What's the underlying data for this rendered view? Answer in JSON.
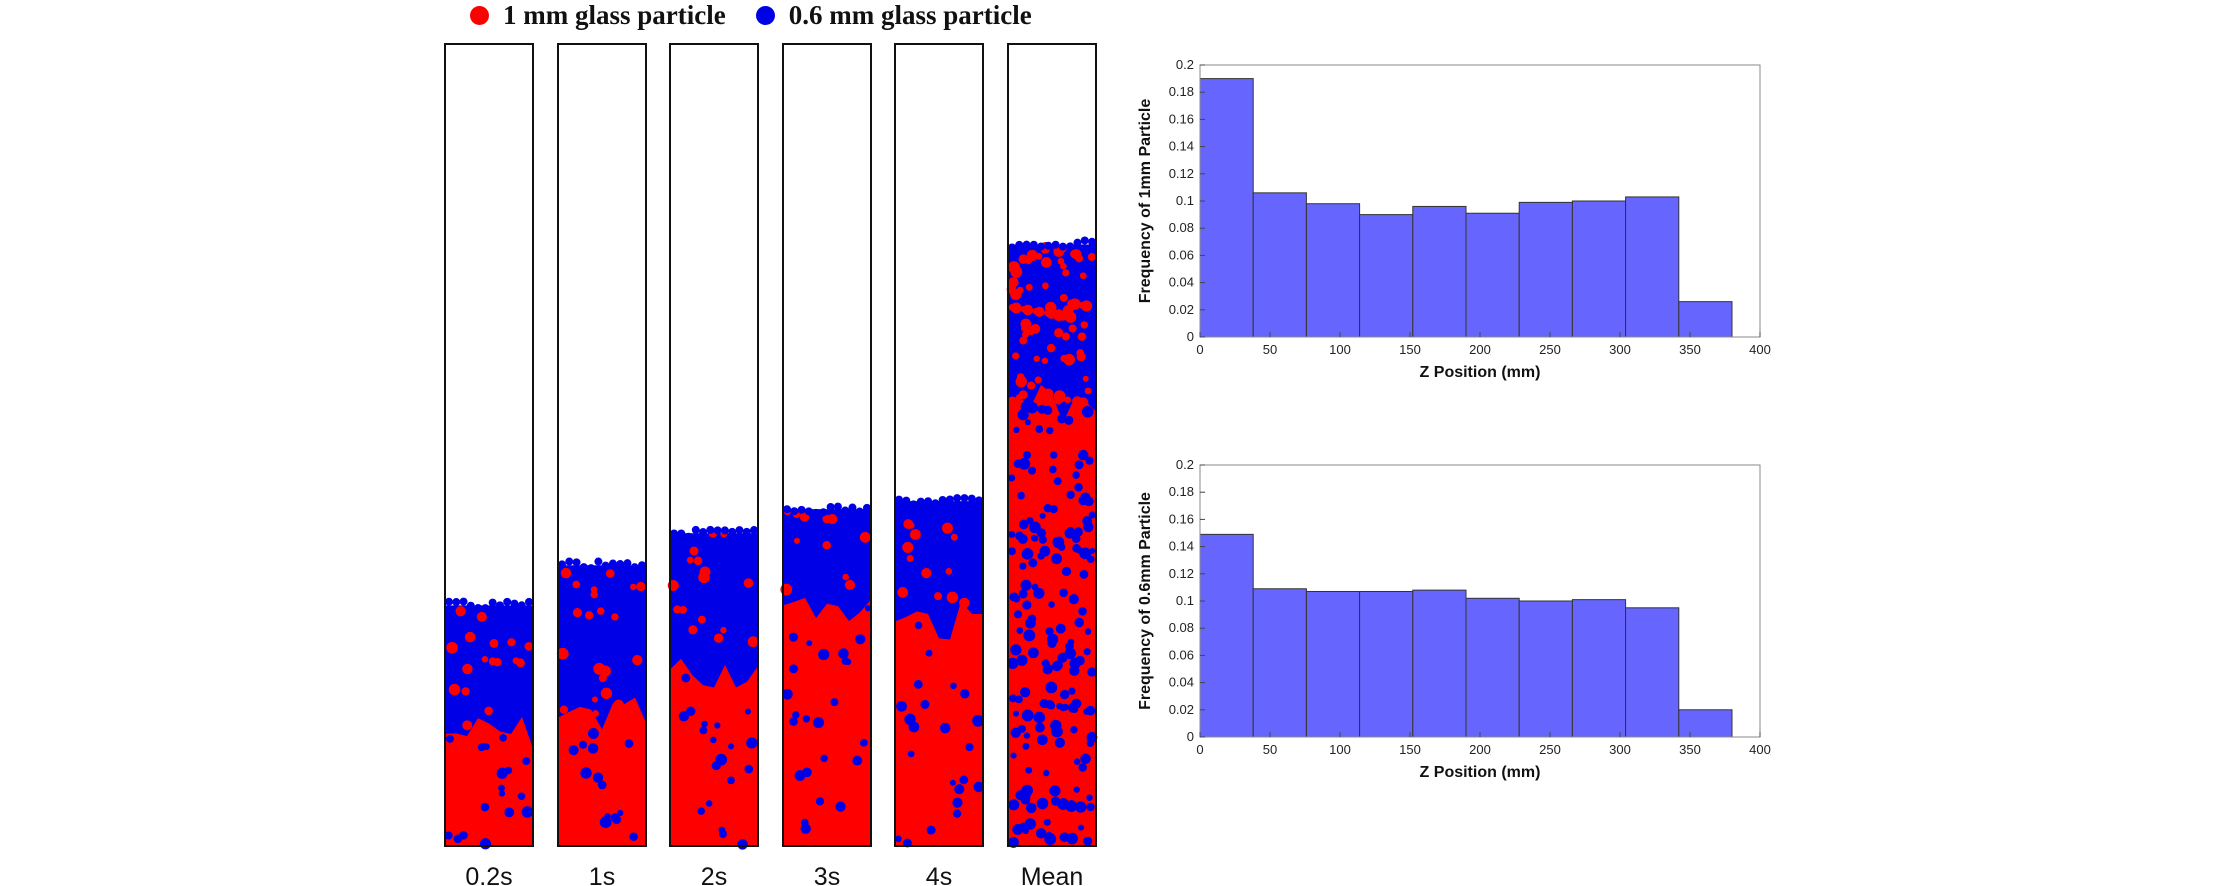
{
  "legend": {
    "items": [
      {
        "label": "1 mm glass particle",
        "color": "#ff0000"
      },
      {
        "label": "0.6 mm glass particle",
        "color": "#0000e6"
      }
    ]
  },
  "columns": {
    "colors": {
      "large": "#ff0000",
      "small": "#0000e6",
      "frame": "#111111"
    },
    "panels": [
      {
        "label": "0.2s",
        "bed_fill_fraction": 0.3,
        "red_fraction": 0.14
      },
      {
        "label": "1s",
        "bed_fill_fraction": 0.35,
        "red_fraction": 0.16
      },
      {
        "label": "2s",
        "bed_fill_fraction": 0.39,
        "red_fraction": 0.22
      },
      {
        "label": "3s",
        "bed_fill_fraction": 0.42,
        "red_fraction": 0.3
      },
      {
        "label": "4s",
        "bed_fill_fraction": 0.43,
        "red_fraction": 0.28
      },
      {
        "label": "Mean",
        "bed_fill_fraction": 0.75,
        "red_fraction": 0.55
      }
    ]
  },
  "chart_data": [
    {
      "type": "bar",
      "xlabel": "Z Position (mm)",
      "ylabel": "Frequency of 1mm Particle",
      "xlim": [
        0,
        400
      ],
      "ylim": [
        0,
        0.2
      ],
      "xticks": [
        0,
        50,
        100,
        150,
        200,
        250,
        300,
        350,
        400
      ],
      "yticks": [
        0,
        0.02,
        0.04,
        0.06,
        0.08,
        0.1,
        0.12,
        0.14,
        0.16,
        0.18,
        0.2
      ],
      "bin_edges": [
        0,
        38,
        76,
        114,
        152,
        190,
        228,
        266,
        304,
        342,
        380
      ],
      "values": [
        0.19,
        0.106,
        0.098,
        0.09,
        0.096,
        0.091,
        0.099,
        0.1,
        0.103,
        0.026
      ],
      "bar_color": "#6666ff",
      "grid": false
    },
    {
      "type": "bar",
      "xlabel": "Z Position (mm)",
      "ylabel": "Frequency of 0.6mm Particle",
      "xlim": [
        0,
        400
      ],
      "ylim": [
        0,
        0.2
      ],
      "xticks": [
        0,
        50,
        100,
        150,
        200,
        250,
        300,
        350,
        400
      ],
      "yticks": [
        0,
        0.02,
        0.04,
        0.06,
        0.08,
        0.1,
        0.12,
        0.14,
        0.16,
        0.18,
        0.2
      ],
      "bin_edges": [
        0,
        38,
        76,
        114,
        152,
        190,
        228,
        266,
        304,
        342,
        380
      ],
      "values": [
        0.149,
        0.109,
        0.107,
        0.107,
        0.108,
        0.102,
        0.1,
        0.101,
        0.095,
        0.02
      ],
      "bar_color": "#6666ff",
      "grid": false
    }
  ]
}
